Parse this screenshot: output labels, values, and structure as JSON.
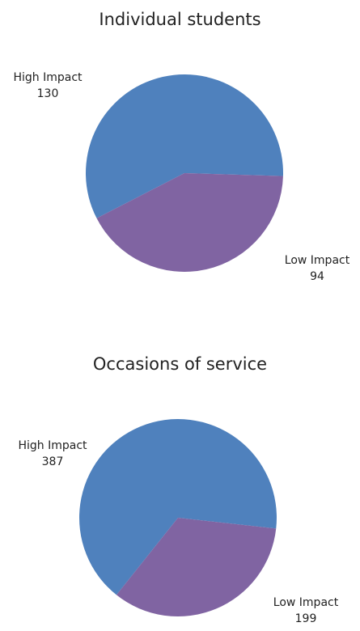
{
  "chart_data": [
    {
      "type": "pie",
      "title": "Individual students",
      "categories": [
        "High Impact",
        "Low Impact"
      ],
      "values": [
        130,
        94
      ],
      "colors": [
        "#4F81BD",
        "#8064A2"
      ],
      "labels": [
        {
          "category": "High Impact",
          "value": "130"
        },
        {
          "category": "Low Impact",
          "value": "94"
        }
      ]
    },
    {
      "type": "pie",
      "title": "Occasions of service",
      "categories": [
        "High Impact",
        "Low Impact"
      ],
      "values": [
        387,
        199
      ],
      "colors": [
        "#4F81BD",
        "#8064A2"
      ],
      "labels": [
        {
          "category": "High Impact",
          "value": "387"
        },
        {
          "category": "Low Impact",
          "value": "199"
        }
      ]
    }
  ]
}
